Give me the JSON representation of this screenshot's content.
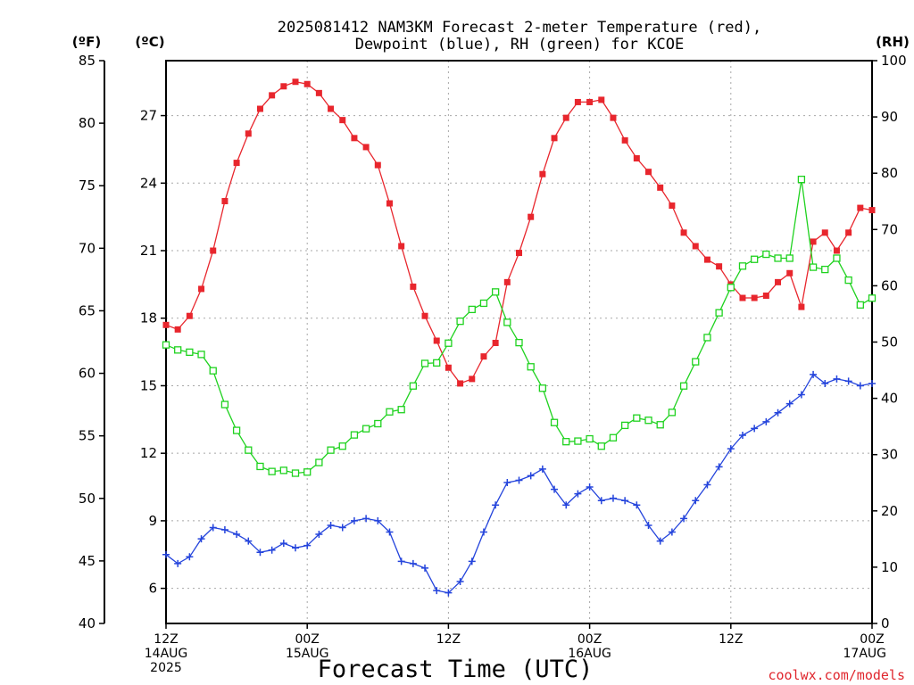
{
  "chart_data": {
    "type": "line",
    "title": [
      "2025081412 NAM3KM Forecast 2-meter Temperature (red),",
      "Dewpoint (blue), RH (green) for KCOE"
    ],
    "xlabel": "Forecast Time (UTC)",
    "units": {
      "f": "(ºF)",
      "c": "(ºC)",
      "rh": "(RH)"
    },
    "credit": "coolwx.com/models",
    "x_range_hours": [
      0,
      60
    ],
    "x_ticks": [
      {
        "h": 0,
        "label": [
          "12Z",
          "14AUG",
          "2025"
        ]
      },
      {
        "h": 12,
        "label": [
          "00Z",
          "15AUG"
        ]
      },
      {
        "h": 24,
        "label": [
          "12Z"
        ]
      },
      {
        "h": 36,
        "label": [
          "00Z",
          "16AUG"
        ]
      },
      {
        "h": 48,
        "label": [
          "12Z"
        ]
      },
      {
        "h": 60,
        "label": [
          "00Z",
          "17AUG"
        ]
      }
    ],
    "y_celsius": {
      "range": [
        4.44,
        29.44
      ],
      "ticks": [
        "6",
        "9",
        "12",
        "15",
        "18",
        "21",
        "24",
        "27"
      ],
      "tick_values": [
        6,
        9,
        12,
        15,
        18,
        21,
        24,
        27
      ]
    },
    "y_fahrenheit": {
      "range": [
        40,
        85
      ],
      "ticks": [
        "40",
        "45",
        "50",
        "55",
        "60",
        "65",
        "70",
        "75",
        "80",
        "85"
      ],
      "tick_values": [
        40,
        45,
        50,
        55,
        60,
        65,
        70,
        75,
        80,
        85
      ]
    },
    "y_rh": {
      "range": [
        0,
        100
      ],
      "ticks": [
        "0",
        "10",
        "20",
        "30",
        "40",
        "50",
        "60",
        "70",
        "80",
        "90",
        "100"
      ],
      "tick_values": [
        0,
        10,
        20,
        30,
        40,
        50,
        60,
        70,
        80,
        90,
        100
      ]
    },
    "grid": true,
    "series": [
      {
        "name": "Temperature",
        "axis": "c",
        "color": "#e8262d",
        "marker": "filled-square",
        "x": [
          0,
          1,
          2,
          3,
          4,
          5,
          6,
          7,
          8,
          9,
          10,
          11,
          12,
          13,
          14,
          15,
          16,
          17,
          18,
          19,
          20,
          21,
          22,
          23,
          24,
          25,
          26,
          27,
          28,
          29,
          30,
          31,
          32,
          33,
          34,
          35,
          36,
          37,
          38,
          39,
          40,
          41,
          42,
          43,
          44,
          45,
          46,
          47,
          48,
          49,
          50,
          51,
          52,
          53,
          54,
          55,
          56,
          57,
          58,
          59,
          60
        ],
        "values": [
          17.7,
          17.5,
          18.1,
          19.3,
          21,
          23.2,
          24.9,
          26.2,
          27.3,
          27.9,
          28.3,
          28.5,
          28.4,
          28,
          27.3,
          26.8,
          26,
          25.6,
          24.8,
          23.1,
          21.2,
          19.4,
          18.1,
          17,
          15.8,
          15.1,
          15.3,
          16.3,
          16.9,
          19.6,
          20.9,
          22.5,
          24.4,
          26,
          26.9,
          27.6,
          27.6,
          27.7,
          26.9,
          25.9,
          25.1,
          24.5,
          23.8,
          23,
          21.8,
          21.2,
          20.6,
          20.3,
          19.5,
          18.9,
          18.9,
          19,
          19.6,
          20,
          18.5,
          21.4,
          21.8,
          21,
          21.8,
          22.9,
          22.8
        ]
      },
      {
        "name": "Dewpoint",
        "axis": "c",
        "color": "#2444dc",
        "marker": "plus",
        "x": [
          0,
          1,
          2,
          3,
          4,
          5,
          6,
          7,
          8,
          9,
          10,
          11,
          12,
          13,
          14,
          15,
          16,
          17,
          18,
          19,
          20,
          21,
          22,
          23,
          24,
          25,
          26,
          27,
          28,
          29,
          30,
          31,
          32,
          33,
          34,
          35,
          36,
          37,
          38,
          39,
          40,
          41,
          42,
          43,
          44,
          45,
          46,
          47,
          48,
          49,
          50,
          51,
          52,
          53,
          54,
          55,
          56,
          57,
          58,
          59,
          60
        ],
        "values": [
          7.5,
          7.1,
          7.4,
          8.2,
          8.7,
          8.6,
          8.4,
          8.1,
          7.6,
          7.7,
          8,
          7.8,
          7.9,
          8.4,
          8.8,
          8.7,
          9,
          9.1,
          9,
          8.5,
          7.2,
          7.1,
          6.9,
          5.9,
          5.8,
          6.3,
          7.2,
          8.5,
          9.7,
          10.7,
          10.8,
          11,
          11.3,
          10.4,
          9.7,
          10.2,
          10.5,
          9.9,
          10,
          9.9,
          9.7,
          8.8,
          8.1,
          8.5,
          9.1,
          9.9,
          10.6,
          11.4,
          12.2,
          12.8,
          13.1,
          13.4,
          13.8,
          14.2,
          14.6,
          15.5,
          15.1,
          15.3,
          15.2,
          15,
          15.1
        ]
      },
      {
        "name": "RH",
        "axis": "rh",
        "color": "#1fd21f",
        "marker": "open-square",
        "x": [
          0,
          1,
          2,
          3,
          4,
          5,
          6,
          7,
          8,
          9,
          10,
          11,
          12,
          13,
          14,
          15,
          16,
          17,
          18,
          19,
          20,
          21,
          22,
          23,
          24,
          25,
          26,
          27,
          28,
          29,
          30,
          31,
          32,
          33,
          34,
          35,
          36,
          37,
          38,
          39,
          40,
          41,
          42,
          43,
          44,
          45,
          46,
          47,
          48,
          49,
          50,
          51,
          52,
          53,
          54,
          55,
          56,
          57,
          58,
          59,
          60
        ],
        "values": [
          49.5,
          48.6,
          48.2,
          47.8,
          44.9,
          38.9,
          34.3,
          30.8,
          27.9,
          27,
          27.2,
          26.7,
          26.9,
          28.6,
          30.8,
          31.5,
          33.5,
          34.6,
          35.5,
          37.6,
          38,
          42.2,
          46.2,
          46.3,
          49.8,
          53.7,
          55.8,
          56.9,
          58.9,
          53.5,
          49.9,
          45.6,
          41.8,
          35.7,
          32.3,
          32.4,
          32.8,
          31.5,
          33,
          35.2,
          36.5,
          36.1,
          35.3,
          37.5,
          42.2,
          46.5,
          50.8,
          55.2,
          59.7,
          63.5,
          64.7,
          65.6,
          64.9,
          64.9,
          78.9,
          63.3,
          62.9,
          64.9,
          61,
          56.6,
          57.8
        ]
      }
    ]
  }
}
